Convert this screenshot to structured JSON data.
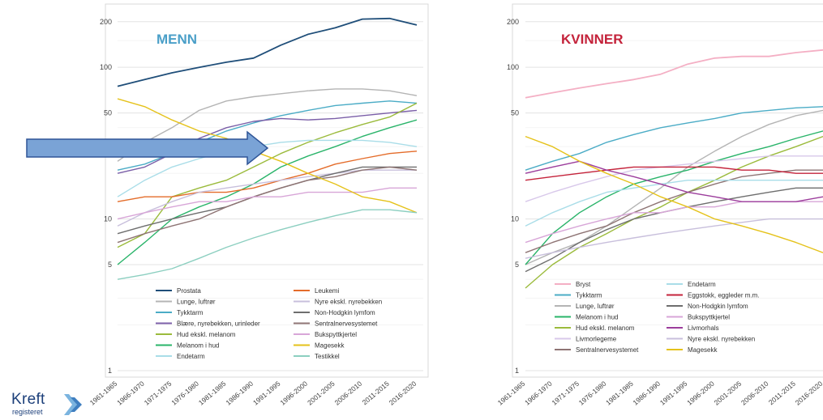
{
  "logo": {
    "name": "Kreft",
    "sub": "registeret"
  },
  "chart_data": [
    {
      "type": "line",
      "title": "MENN",
      "title_color": "#4a9fc8",
      "yscale": "log",
      "ylim": [
        1,
        220
      ],
      "yticks": [
        1,
        5,
        10,
        50,
        100,
        200
      ],
      "grid": true,
      "legend_position": "bottom",
      "categories": [
        "1961-1965",
        "1966-1970",
        "1971-1975",
        "1976-1980",
        "1981-1985",
        "1986-1990",
        "1991-1995",
        "1996-2000",
        "2001-2005",
        "2006-2010",
        "2011-2015",
        "2016-2020"
      ],
      "series": [
        {
          "name": "Prostata",
          "color": "#1f4e79",
          "values": [
            75,
            83,
            92,
            100,
            108,
            115,
            140,
            165,
            182,
            208,
            210,
            190
          ]
        },
        {
          "name": "Lunge, luftrør",
          "color": "#b4b4b4",
          "values": [
            24,
            32,
            40,
            52,
            60,
            64,
            67,
            70,
            72,
            72,
            70,
            65
          ]
        },
        {
          "name": "Tykktarm",
          "color": "#4bacc6",
          "values": [
            21,
            23,
            27,
            32,
            38,
            43,
            48,
            52,
            56,
            58,
            60,
            58
          ]
        },
        {
          "name": "Blære, nyrebekken, urinleder",
          "color": "#7b5fa8",
          "values": [
            20,
            22,
            27,
            34,
            40,
            44,
            46,
            45,
            46,
            48,
            50,
            52
          ]
        },
        {
          "name": "Hud ekskl. melanom",
          "color": "#9bbb3c",
          "values": [
            6.5,
            8,
            14,
            16,
            18,
            22,
            27,
            32,
            37,
            42,
            47,
            58
          ]
        },
        {
          "name": "Melanom i hud",
          "color": "#2ab46a",
          "values": [
            5,
            7,
            10,
            12,
            14,
            17,
            22,
            26,
            30,
            35,
            40,
            45
          ]
        },
        {
          "name": "Endetarm",
          "color": "#a9dde8",
          "values": [
            14,
            18,
            22,
            25,
            28,
            30,
            32,
            33,
            33,
            33,
            32,
            30
          ]
        },
        {
          "name": "Leukemi",
          "color": "#e46c2a",
          "values": [
            13,
            14,
            14,
            15,
            15,
            16,
            18,
            20,
            23,
            25,
            27,
            28
          ]
        },
        {
          "name": "Nyre ekskl. nyrebekken",
          "color": "#c8bfdc",
          "values": [
            9,
            11,
            13,
            15,
            16,
            17,
            18,
            19,
            20,
            21,
            21,
            21
          ]
        },
        {
          "name": "Non-Hodgkin lymfom",
          "color": "#6e6e6e",
          "values": [
            8,
            9,
            10,
            11,
            12,
            14,
            16,
            18,
            20,
            22,
            22,
            22
          ]
        },
        {
          "name": "Sentralnervesystemet",
          "color": "#8e7474",
          "values": [
            7,
            8,
            9,
            10,
            12,
            14,
            16,
            18,
            19,
            21,
            22,
            21
          ]
        },
        {
          "name": "Bukspyttkjertel",
          "color": "#d8a6d8",
          "values": [
            10,
            11,
            12,
            13,
            13,
            14,
            14,
            15,
            15,
            15,
            16,
            16
          ]
        },
        {
          "name": "Magesekk",
          "color": "#e5c21a",
          "values": [
            62,
            55,
            45,
            38,
            34,
            28,
            24,
            20,
            17,
            14,
            13,
            11
          ]
        },
        {
          "name": "Testikkel",
          "color": "#8ccfc0",
          "values": [
            4,
            4.3,
            4.7,
            5.5,
            6.5,
            7.5,
            8.5,
            9.5,
            10.5,
            11.5,
            11.5,
            11
          ]
        }
      ]
    },
    {
      "type": "line",
      "title": "KVINNER",
      "title_color": "#c4233b",
      "yscale": "log",
      "ylim": [
        1,
        220
      ],
      "yticks": [
        1,
        5,
        10,
        50,
        100,
        200
      ],
      "grid": true,
      "legend_position": "bottom",
      "categories": [
        "1961-1965",
        "1966-1970",
        "1971-1975",
        "1976-1980",
        "1981-1985",
        "1986-1990",
        "1991-1995",
        "1996-2000",
        "2001-2005",
        "2006-2010",
        "2011-2015",
        "2016-2020"
      ],
      "series": [
        {
          "name": "Bryst",
          "color": "#f4afc4",
          "values": [
            63,
            68,
            73,
            78,
            83,
            90,
            105,
            115,
            118,
            118,
            125,
            130
          ]
        },
        {
          "name": "Tykktarm",
          "color": "#4bacc6",
          "values": [
            21,
            24,
            27,
            32,
            36,
            40,
            43,
            46,
            50,
            52,
            54,
            55
          ]
        },
        {
          "name": "Lunge, luftrør",
          "color": "#b4b4b4",
          "values": [
            5,
            6,
            7,
            9,
            12,
            16,
            22,
            28,
            35,
            42,
            48,
            52
          ]
        },
        {
          "name": "Melanom i hud",
          "color": "#2ab46a",
          "values": [
            5,
            8,
            11,
            14,
            17,
            19,
            21,
            24,
            27,
            30,
            34,
            38
          ]
        },
        {
          "name": "Hud ekskl. melanom",
          "color": "#9bbb3c",
          "values": [
            3.5,
            5,
            6.5,
            8,
            10,
            12,
            15,
            18,
            22,
            26,
            30,
            35
          ]
        },
        {
          "name": "Livmorlegeme",
          "color": "#d8c8ea",
          "values": [
            13,
            15,
            17,
            19,
            21,
            22,
            23,
            24,
            25,
            26,
            26,
            26
          ]
        },
        {
          "name": "Sentralnervesystemet",
          "color": "#8e7474",
          "values": [
            6,
            7,
            8,
            9,
            11,
            13,
            15,
            17,
            19,
            20,
            21,
            21
          ]
        },
        {
          "name": "Endetarm",
          "color": "#a9dde8",
          "values": [
            9,
            11,
            13,
            15,
            16,
            17,
            18,
            18,
            18,
            18,
            18,
            18
          ]
        },
        {
          "name": "Eggstokk, eggleder m.m.",
          "color": "#c4233b",
          "values": [
            18,
            19,
            20,
            21,
            22,
            22,
            22,
            22,
            21,
            21,
            20,
            20
          ]
        },
        {
          "name": "Non-Hodgkin lymfom",
          "color": "#6e6e6e",
          "values": [
            4.5,
            5.5,
            7,
            8.5,
            10,
            11,
            12,
            13,
            14,
            15,
            16,
            16
          ]
        },
        {
          "name": "Bukspyttkjertel",
          "color": "#d8a6d8",
          "values": [
            7,
            8,
            9,
            10,
            11,
            11,
            12,
            12,
            13,
            13,
            13,
            13
          ]
        },
        {
          "name": "Livmorhals",
          "color": "#9c3d9c",
          "values": [
            20,
            22,
            24,
            21,
            19,
            17,
            15,
            14,
            13,
            13,
            13,
            14
          ]
        },
        {
          "name": "Nyre ekskl. nyrebekken",
          "color": "#c8bfdc",
          "values": [
            5.5,
            6,
            6.5,
            7,
            7.5,
            8,
            8.5,
            9,
            9.5,
            10,
            10,
            10
          ]
        },
        {
          "name": "Magesekk",
          "color": "#e5c21a",
          "values": [
            35,
            30,
            24,
            20,
            17,
            14,
            12,
            10,
            9,
            8,
            7,
            6
          ]
        }
      ]
    }
  ]
}
